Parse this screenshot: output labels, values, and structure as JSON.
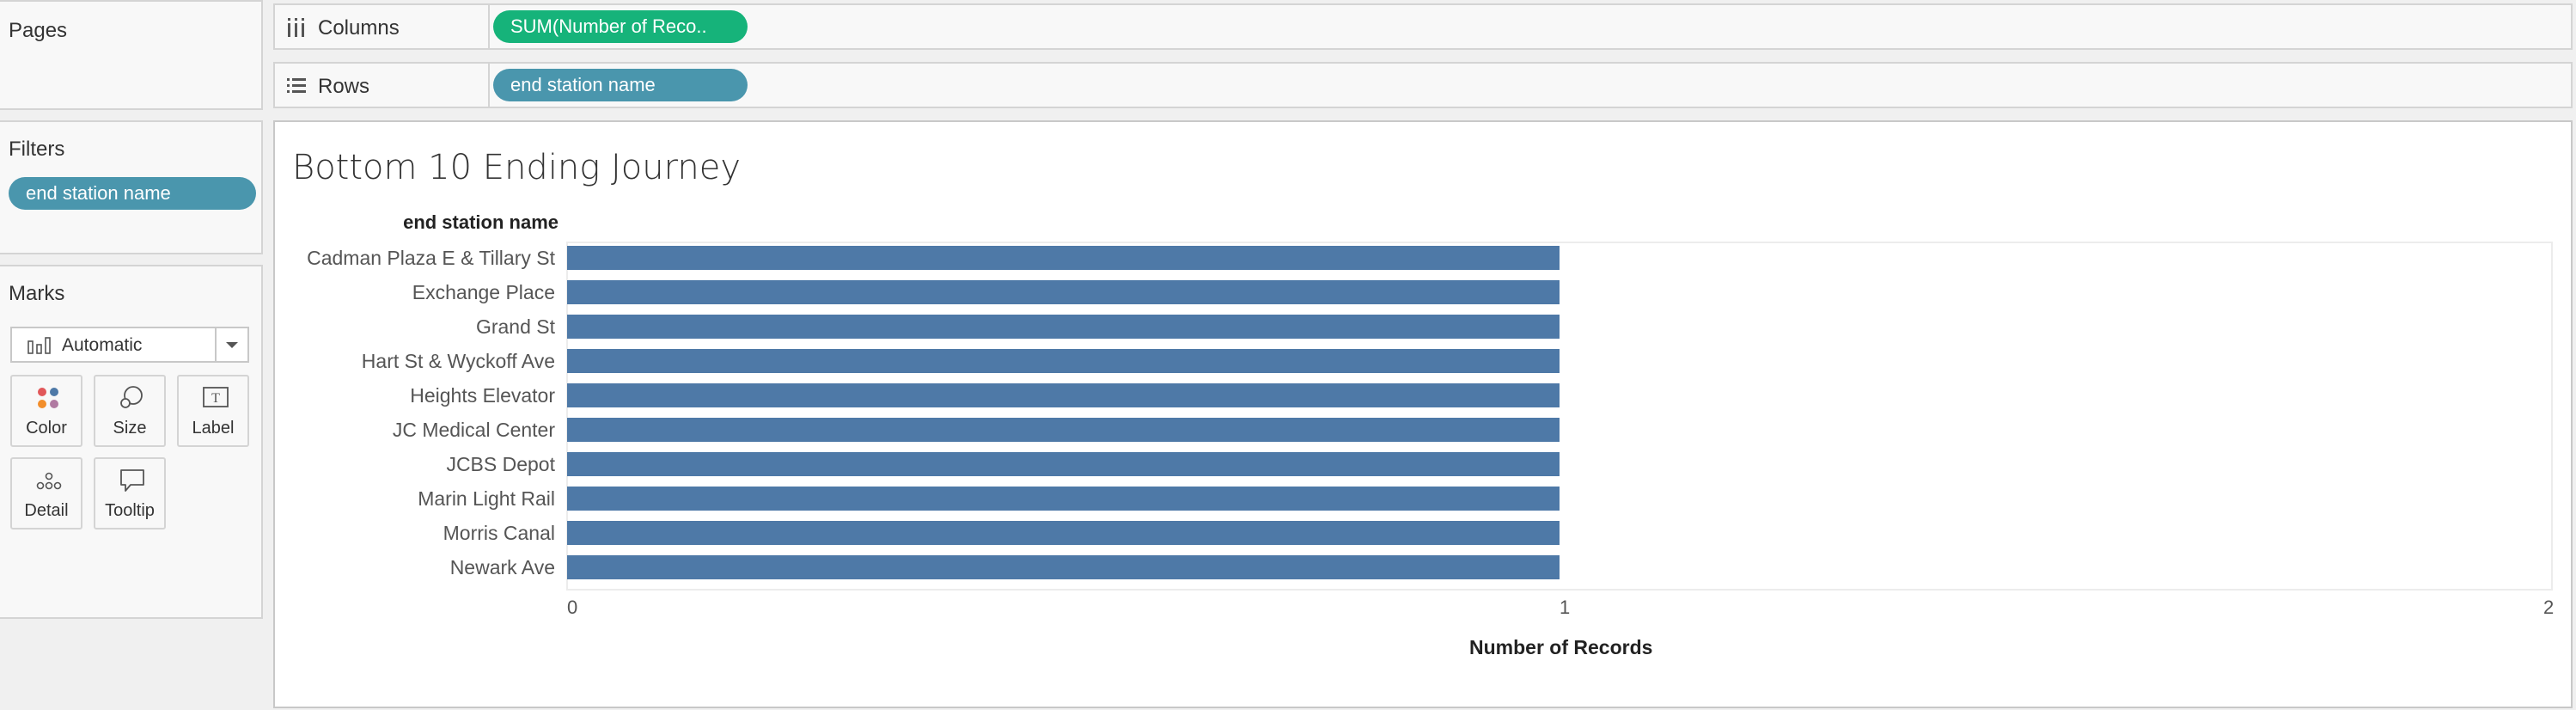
{
  "left": {
    "pages_title": "Pages",
    "filters_title": "Filters",
    "filter_pill": "end station name",
    "marks_title": "Marks",
    "mark_type": "Automatic",
    "buttons": {
      "color": "Color",
      "size": "Size",
      "label": "Label",
      "detail": "Detail",
      "tooltip": "Tooltip"
    }
  },
  "shelves": {
    "columns_label": "Columns",
    "columns_pill": "SUM(Number of Reco..",
    "rows_label": "Rows",
    "rows_pill": "end station name"
  },
  "colors": {
    "bar": "#4e79a7",
    "pill_green": "#16b37a",
    "pill_blue": "#4a96ad"
  },
  "chart_data": {
    "type": "bar",
    "orientation": "horizontal",
    "title": "Bottom 10 Ending Journey",
    "row_header": "end station name",
    "xlabel": "Number of Records",
    "categories": [
      "Cadman Plaza E & Tillary St",
      "Exchange Place",
      "Grand St",
      "Hart St & Wyckoff Ave",
      "Heights Elevator",
      "JC Medical Center",
      "JCBS Depot",
      "Marin Light Rail",
      "Morris Canal",
      "Newark Ave"
    ],
    "values": [
      1,
      1,
      1,
      1,
      1,
      1,
      1,
      1,
      1,
      1
    ],
    "xlim": [
      0,
      2
    ],
    "xticks": [
      "0",
      "1",
      "2"
    ],
    "grid": false
  }
}
